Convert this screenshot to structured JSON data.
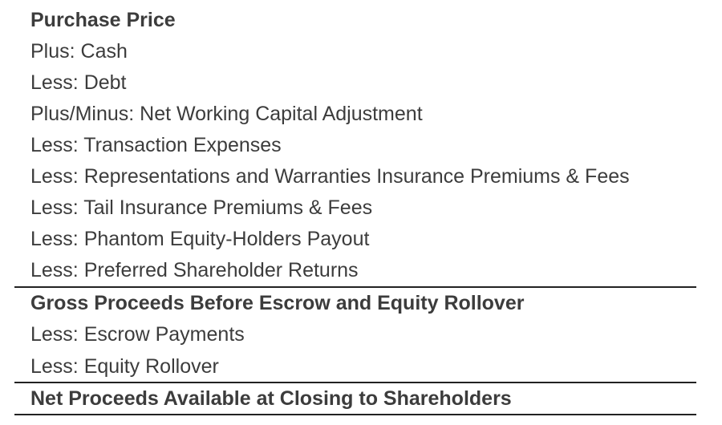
{
  "rows": [
    {
      "label": "Purchase Price",
      "bold": true
    },
    {
      "label": "Plus: Cash",
      "bold": false
    },
    {
      "label": "Less: Debt",
      "bold": false
    },
    {
      "label": "Plus/Minus: Net Working Capital Adjustment",
      "bold": false
    },
    {
      "label": "Less: Transaction Expenses",
      "bold": false
    },
    {
      "label": "Less: Representations and Warranties Insurance Premiums & Fees",
      "bold": false
    },
    {
      "label": "Less: Tail Insurance Premiums & Fees",
      "bold": false
    },
    {
      "label": "Less: Phantom Equity-Holders Payout",
      "bold": false
    },
    {
      "label": "Less: Preferred Shareholder Returns",
      "bold": false
    },
    {
      "label": "Gross Proceeds Before Escrow and Equity Rollover",
      "bold": true
    },
    {
      "label": "Less: Escrow Payments",
      "bold": false
    },
    {
      "label": "Less: Equity Rollover",
      "bold": false
    },
    {
      "label": "Net Proceeds Available at Closing to Shareholders",
      "bold": true
    }
  ]
}
